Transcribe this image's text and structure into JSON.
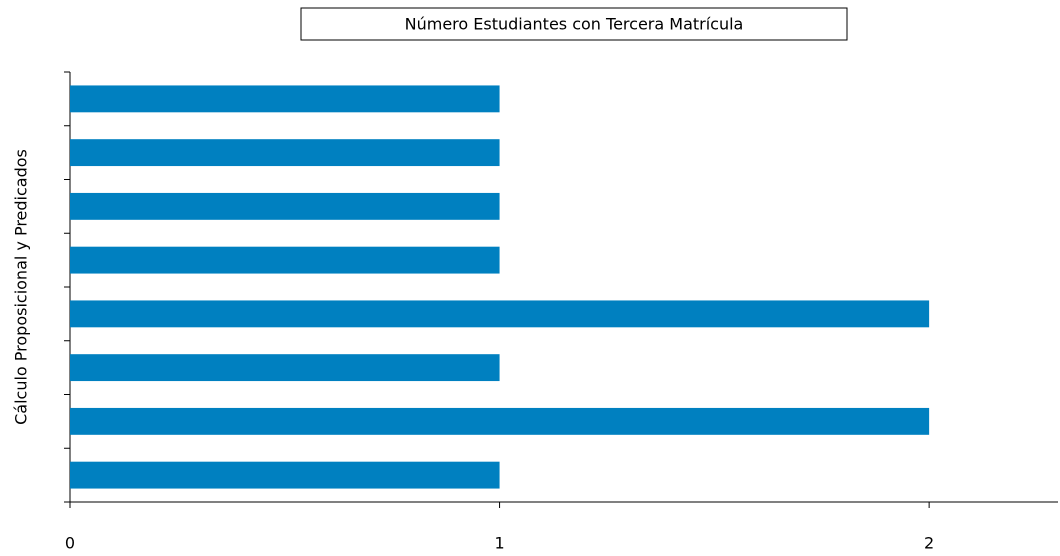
{
  "chart_data": {
    "type": "barh",
    "title": "Número Estudiantes con Tercera Matrícula",
    "y_label": "Cálculo Proposicional y Predicados",
    "categories": [
      null,
      null,
      null,
      null,
      null,
      null,
      null,
      null
    ],
    "values": [
      1,
      1,
      1,
      1,
      2,
      1,
      2,
      1
    ],
    "color": "#0080c0",
    "xlim": [
      0,
      2.3
    ],
    "xticks": [
      0,
      1,
      2
    ],
    "grid": false
  }
}
